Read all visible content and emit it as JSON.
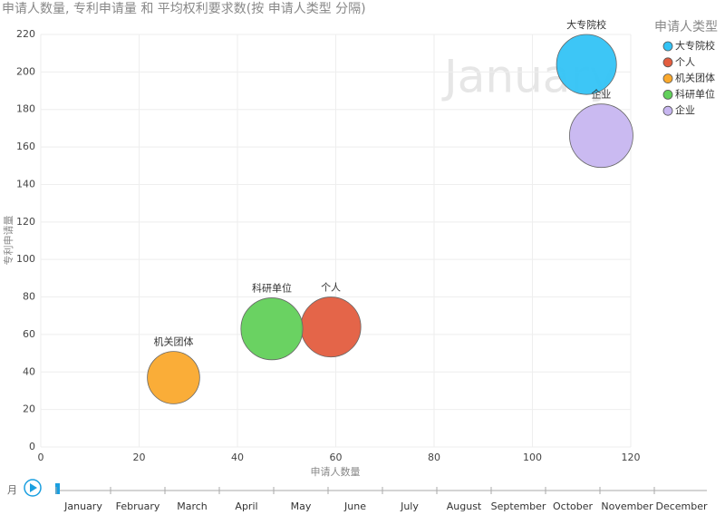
{
  "chart_data": {
    "type": "bubble",
    "title": "申请人数量, 专利申请量 和 平均权利要求数(按 申请人类型 分隔)",
    "watermark": "January",
    "x_label": "申请人数量",
    "y_label": "专利申请量",
    "legend_title": "申请人类型",
    "xlim": [
      0,
      120
    ],
    "xticks": [
      0,
      20,
      40,
      60,
      80,
      100,
      120
    ],
    "ylim": [
      0,
      220
    ],
    "yticks": [
      0,
      20,
      40,
      60,
      80,
      100,
      120,
      140,
      160,
      180,
      200,
      220
    ],
    "grid": true,
    "series": [
      {
        "name": "大专院校",
        "color": "#33c3f5",
        "x": [
          111
        ],
        "values": [
          204
        ],
        "sizes": [
          10.9
        ]
      },
      {
        "name": "个人",
        "color": "#e35d3f",
        "x": [
          59
        ],
        "values": [
          64
        ],
        "sizes": [
          10.9
        ]
      },
      {
        "name": "机关团体",
        "color": "#faa92d",
        "x": [
          27
        ],
        "values": [
          37
        ],
        "sizes": [
          8.3
        ]
      },
      {
        "name": "科研单位",
        "color": "#62d05a",
        "x": [
          47
        ],
        "values": [
          63
        ],
        "sizes": [
          11.6
        ]
      },
      {
        "name": "企业",
        "color": "#c7b6f0",
        "x": [
          114
        ],
        "values": [
          166
        ],
        "sizes": [
          12.2
        ]
      }
    ],
    "play_axis": {
      "label": "月",
      "categories": [
        "January",
        "February",
        "March",
        "April",
        "May",
        "June",
        "July",
        "August",
        "September",
        "October",
        "November",
        "December"
      ]
    }
  }
}
